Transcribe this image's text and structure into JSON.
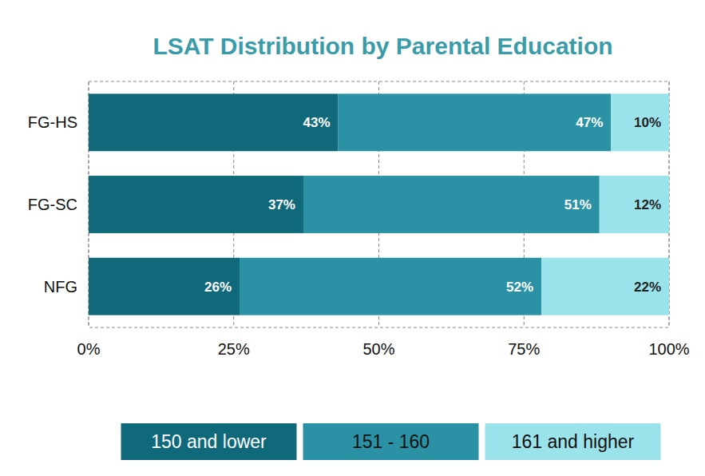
{
  "chart_data": {
    "type": "bar",
    "title": "LSAT Distribution by Parental Education",
    "orientation": "horizontal",
    "stacked": true,
    "data_labels": true,
    "grid": true,
    "legend": "bottom",
    "categories": [
      "FG-HS",
      "FG-SC",
      "NFG"
    ],
    "series": [
      {
        "name": "150 and lower",
        "color": "#0f697b",
        "values": [
          43,
          37,
          26
        ],
        "value_labels": [
          "43%",
          "37%",
          "26%"
        ]
      },
      {
        "name": "151 - 160",
        "color": "#2a92a4",
        "values": [
          47,
          51,
          52
        ],
        "value_labels": [
          "47%",
          "51%",
          "52%"
        ]
      },
      {
        "name": "161 and higher",
        "color": "#9be3ea",
        "values": [
          10,
          12,
          22
        ],
        "value_labels": [
          "10%",
          "12%",
          "22%"
        ]
      }
    ],
    "xlim": [
      0,
      100
    ],
    "xticks": [
      {
        "value": 0,
        "label": "0%"
      },
      {
        "value": 25,
        "label": "25%"
      },
      {
        "value": 50,
        "label": "50%"
      },
      {
        "value": 75,
        "label": "75%"
      },
      {
        "value": 100,
        "label": "100%"
      }
    ]
  }
}
